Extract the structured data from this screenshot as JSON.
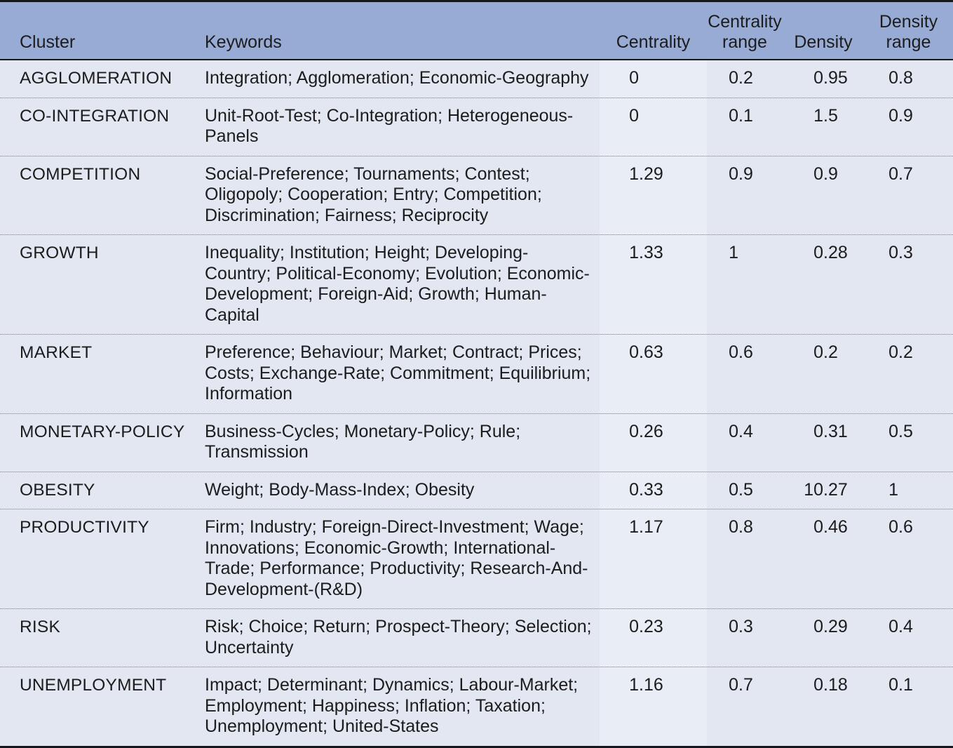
{
  "table": {
    "colors": {
      "header_bg": "#98abd5",
      "row_bg": "#e2e7f2",
      "centrality_column_bg": "#e9edf6",
      "rule_dark": "#16161e",
      "dotted_separator": "#7d7d85",
      "text": "#1c1c1c"
    },
    "columns": [
      {
        "key": "cluster",
        "label": "Cluster"
      },
      {
        "key": "keywords",
        "label": "Keywords"
      },
      {
        "key": "centrality",
        "label": "Centrality"
      },
      {
        "key": "centrality_range",
        "label": "Centrality range"
      },
      {
        "key": "density",
        "label": "Density"
      },
      {
        "key": "density_range",
        "label": "Density range"
      }
    ],
    "rows": [
      {
        "cluster": "AGGLOMERATION",
        "keywords": "Integration; Agglomeration; Economic-Geography",
        "centrality": "0",
        "centrality_range": "0.2",
        "density": "0.95",
        "density_range": "0.8"
      },
      {
        "cluster": "CO-INTEGRATION",
        "keywords": "Unit-Root-Test; Co-Integration; Heterogeneous-Panels",
        "centrality": "0",
        "centrality_range": "0.1",
        "density": "1.5",
        "density_range": "0.9"
      },
      {
        "cluster": "COMPETITION",
        "keywords": "Social-Preference; Tournaments; Contest; Oligopoly; Cooperation; Entry; Competition; Discrimination; Fairness; Reciprocity",
        "centrality": "1.29",
        "centrality_range": "0.9",
        "density": "0.9",
        "density_range": "0.7"
      },
      {
        "cluster": "GROWTH",
        "keywords": "Inequality; Institution; Height; Developing-Country; Political-Economy; Evolution; Economic-Development; Foreign-Aid; Growth; Human-Capital",
        "centrality": "1.33",
        "centrality_range": "1",
        "density": "0.28",
        "density_range": "0.3"
      },
      {
        "cluster": "MARKET",
        "keywords": "Preference; Behaviour; Market; Contract; Prices; Costs; Exchange-Rate; Commitment; Equilibrium; Information",
        "centrality": "0.63",
        "centrality_range": "0.6",
        "density": "0.2",
        "density_range": "0.2"
      },
      {
        "cluster": "MONETARY-POLICY",
        "keywords": "Business-Cycles; Monetary-Policy; Rule; Transmission",
        "centrality": "0.26",
        "centrality_range": "0.4",
        "density": "0.31",
        "density_range": "0.5"
      },
      {
        "cluster": "OBESITY",
        "keywords": "Weight; Body-Mass-Index; Obesity",
        "centrality": "0.33",
        "centrality_range": "0.5",
        "density": "10.27",
        "density_range": "1"
      },
      {
        "cluster": "PRODUCTIVITY",
        "keywords": "Firm; Industry; Foreign-Direct-Investment; Wage; Innovations; Economic-Growth; International-Trade; Performance; Productivity; Research-And-Development-(R&D)",
        "centrality": "1.17",
        "centrality_range": "0.8",
        "density": "0.46",
        "density_range": "0.6"
      },
      {
        "cluster": "RISK",
        "keywords": "Risk; Choice; Return; Prospect-Theory; Selection; Uncertainty",
        "centrality": "0.23",
        "centrality_range": "0.3",
        "density": "0.29",
        "density_range": "0.4"
      },
      {
        "cluster": "UNEMPLOYMENT",
        "keywords": "Impact; Determinant; Dynamics; Labour-Market; Employment; Happiness; Inflation; Taxation; Unemployment; United-States",
        "centrality": "1.16",
        "centrality_range": "0.7",
        "density": "0.18",
        "density_range": "0.1"
      }
    ]
  }
}
